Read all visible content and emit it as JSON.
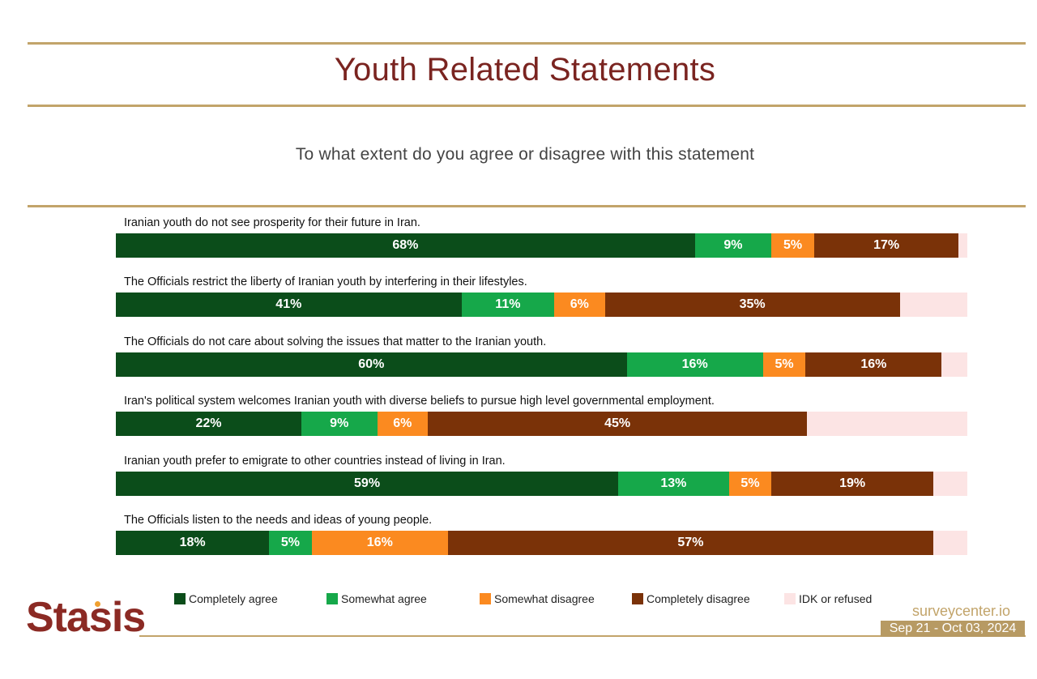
{
  "title": "Youth Related Statements",
  "subtitle": "To what extent do you agree or disagree with this statement",
  "colors": {
    "completely_agree": "#0b4d1a",
    "somewhat_agree": "#16a84a",
    "somewhat_disagree": "#fb8a20",
    "completely_disagree": "#7a3208",
    "idk": "#fce4e4",
    "title": "#7a2420",
    "rule": "#c2a46a"
  },
  "chart_data": {
    "type": "bar",
    "orientation": "horizontal-stacked-100",
    "series_names": [
      "Completely agree",
      "Somewhat agree",
      "Somewhat disagree",
      "Completely disagree",
      "IDK or refused"
    ],
    "categories": [
      "Iranian youth do not see prosperity for their future in Iran.",
      "The Officials restrict the liberty of Iranian youth by interfering in their lifestyles.",
      "The Officials do not care about solving the issues that matter to the Iranian youth.",
      "Iran's political system welcomes Iranian youth with diverse beliefs to pursue high level governmental employment.",
      "Iranian youth prefer to emigrate to other countries instead of living in Iran.",
      "The Officials listen to the needs and ideas of young people."
    ],
    "series": [
      {
        "name": "Completely agree",
        "values": [
          68,
          41,
          60,
          22,
          59,
          18
        ]
      },
      {
        "name": "Somewhat agree",
        "values": [
          9,
          11,
          16,
          9,
          13,
          5
        ]
      },
      {
        "name": "Somewhat disagree",
        "values": [
          5,
          6,
          5,
          6,
          5,
          16
        ]
      },
      {
        "name": "Completely disagree",
        "values": [
          17,
          35,
          16,
          45,
          19,
          57
        ]
      },
      {
        "name": "IDK or refused",
        "values": [
          1,
          8,
          3,
          19,
          4,
          4
        ]
      }
    ],
    "value_suffix": "%",
    "xlim": [
      0,
      100
    ],
    "legend": "bottom"
  },
  "legend": {
    "items": [
      "Completely agree",
      "Somewhat agree",
      "Somewhat disagree",
      "Completely disagree",
      "IDK or refused"
    ]
  },
  "footer": {
    "logo": "Stasis",
    "site": "surveycenter.io",
    "dates": "Sep 21 - Oct 03, 2024"
  }
}
